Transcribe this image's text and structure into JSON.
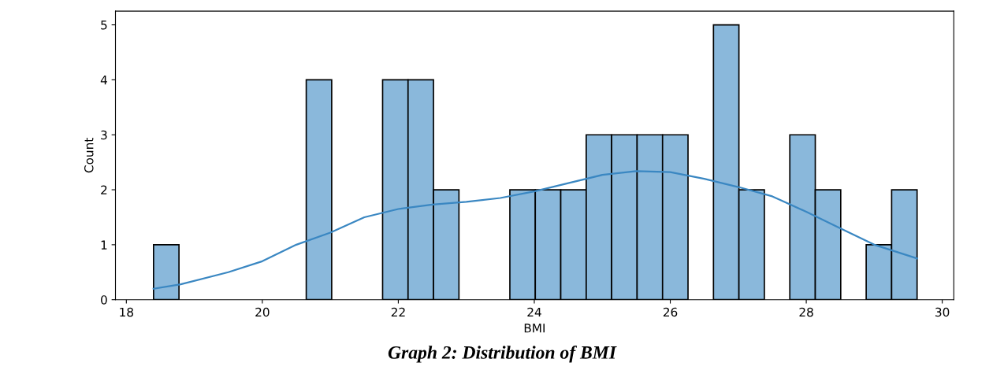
{
  "chart_data": {
    "type": "histogram",
    "title": "Graph 2: Distribution of BMI",
    "xlabel": "BMI",
    "ylabel": "Count",
    "bins": [
      18.4,
      18.7743,
      19.1487,
      19.523,
      19.8973,
      20.2717,
      20.646,
      21.0203,
      21.3947,
      21.769,
      22.1433,
      22.5177,
      22.892,
      23.2663,
      23.6407,
      24.015,
      24.3893,
      24.7637,
      25.138,
      25.5123,
      25.8867,
      26.261,
      26.6353,
      27.0097,
      27.384,
      27.7583,
      28.1327,
      28.507,
      28.8813,
      29.2557,
      29.63
    ],
    "values": [
      1,
      0,
      0,
      0,
      0,
      0,
      4,
      0,
      0,
      4,
      4,
      2,
      0,
      0,
      2,
      2,
      2,
      3,
      3,
      3,
      3,
      0,
      5,
      2,
      0,
      3,
      2,
      0,
      1,
      2
    ],
    "color": "#8ab8db",
    "series": [
      {
        "type": "line",
        "color": "#3a87c2",
        "x": [
          18.4,
          18.8,
          19.5,
          20,
          20.5,
          21,
          21.5,
          22,
          22.5,
          23,
          23.5,
          24,
          24.5,
          25,
          25.5,
          26,
          26.5,
          27,
          27.5,
          28,
          28.5,
          29,
          29.63
        ],
        "values": [
          0.2,
          0.28,
          0.5,
          0.7,
          1.0,
          1.22,
          1.5,
          1.65,
          1.73,
          1.78,
          1.85,
          1.97,
          2.12,
          2.27,
          2.34,
          2.32,
          2.2,
          2.05,
          1.88,
          1.6,
          1.3,
          1.0,
          0.75
        ]
      }
    ],
    "xlim": [
      17.84,
      30.17
    ],
    "ylim": [
      0,
      5.25
    ],
    "xticks": [
      18,
      20,
      22,
      24,
      26,
      28,
      30
    ],
    "yticks": [
      0,
      1,
      2,
      3,
      4,
      5
    ],
    "grid": false,
    "legend": false
  }
}
